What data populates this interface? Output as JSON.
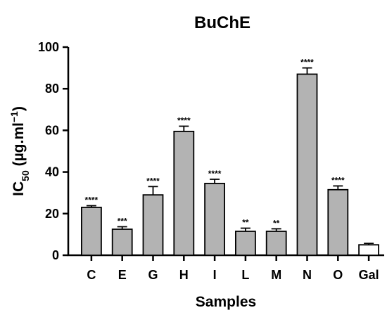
{
  "chart_data": {
    "type": "bar",
    "title": "BuChE",
    "xlabel": "Samples",
    "ylabel": {
      "main": "IC",
      "sub": "50",
      "unit_open": " (µg.ml",
      "sup": "−1",
      "unit_close": ")"
    },
    "ylim": [
      0,
      100
    ],
    "yticks": [
      0,
      20,
      40,
      60,
      80,
      100
    ],
    "grid": false,
    "categories": [
      "C",
      "E",
      "G",
      "H",
      "I",
      "L",
      "M",
      "N",
      "O",
      "Gal"
    ],
    "values": [
      23,
      12.5,
      29,
      59.5,
      34.5,
      11.5,
      11.5,
      87,
      31.5,
      5
    ],
    "errors": [
      0.8,
      1.2,
      4,
      2.5,
      2,
      1.5,
      1.2,
      3,
      1.8,
      0.7
    ],
    "significance": [
      "****",
      "***",
      "****",
      "****",
      "****",
      "**",
      "**",
      "****",
      "****",
      ""
    ],
    "bar_fill": "#b3b3b3",
    "control_fill": "#ffffff",
    "control_category": "Gal",
    "stroke_color": "#000000"
  }
}
